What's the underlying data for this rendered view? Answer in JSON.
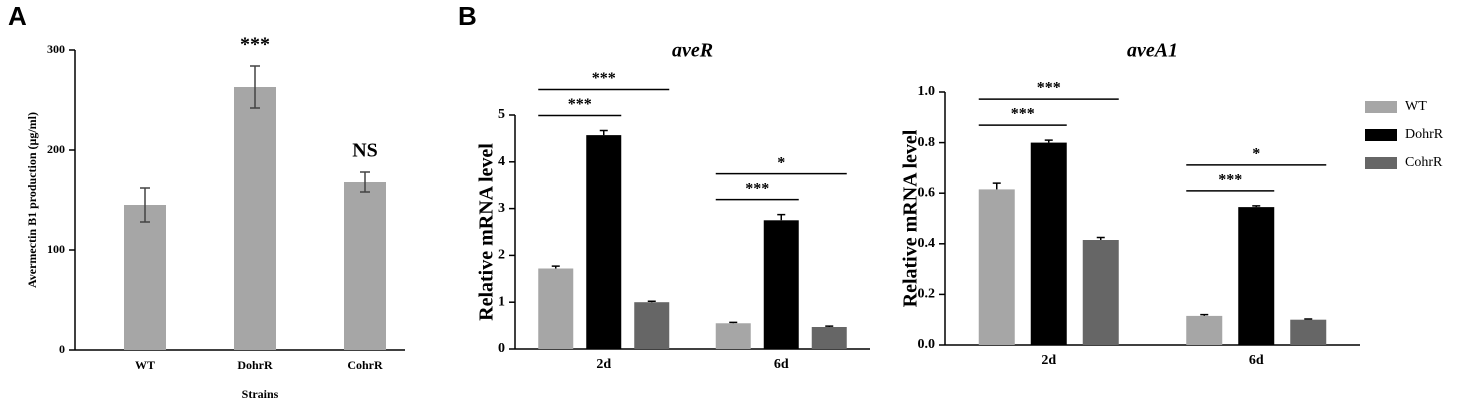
{
  "chart_data": [
    {
      "type": "bar",
      "panel": "A",
      "x_label": "Strains",
      "y_label": "Avermectin B1 production (μg/ml)",
      "categories": [
        "WT",
        "DohrR",
        "CohrR"
      ],
      "values": [
        145,
        263,
        168
      ],
      "errors": [
        17,
        21,
        10
      ],
      "error_bars": "both",
      "annotations": [
        null,
        "***",
        "NS"
      ],
      "color": "#a6a6a6",
      "ylim": [
        0,
        300
      ],
      "yticks": [
        0,
        100,
        200,
        300
      ]
    },
    {
      "type": "grouped_bar",
      "panel": "B",
      "title": "aveR",
      "y_label": "Relative mRNA level",
      "categories": [
        "2d",
        "6d"
      ],
      "series": [
        {
          "name": "WT",
          "color": "#a6a6a6",
          "values": [
            1.72,
            0.55
          ],
          "errors": [
            0.05,
            0.02
          ]
        },
        {
          "name": "DohrR",
          "color": "#000000",
          "values": [
            4.57,
            2.75
          ],
          "errors": [
            0.1,
            0.12
          ]
        },
        {
          "name": "CohrR",
          "color": "#666666",
          "values": [
            1.0,
            0.47
          ],
          "errors": [
            0.02,
            0.02
          ]
        }
      ],
      "error_bars": "up",
      "significance": [
        [
          "***",
          "***"
        ],
        [
          "***",
          "*"
        ]
      ],
      "legend": false,
      "ylim": [
        0,
        5
      ],
      "yticks": [
        0,
        1,
        2,
        3,
        4,
        5
      ]
    },
    {
      "type": "grouped_bar",
      "title": "aveA1",
      "y_label": "Relative mRNA level",
      "categories": [
        "2d",
        "6d"
      ],
      "series": [
        {
          "name": "WT",
          "color": "#a6a6a6",
          "values": [
            0.615,
            0.115
          ],
          "errors": [
            0.025,
            0.005
          ]
        },
        {
          "name": "DohrR",
          "color": "#000000",
          "values": [
            0.8,
            0.545
          ],
          "errors": [
            0.01,
            0.005
          ]
        },
        {
          "name": "CohrR",
          "color": "#666666",
          "values": [
            0.415,
            0.1
          ],
          "errors": [
            0.01,
            0.003
          ]
        }
      ],
      "error_bars": "up",
      "significance": [
        [
          "***",
          "***"
        ],
        [
          "***",
          "*"
        ]
      ],
      "legend": "right",
      "ylim": [
        0,
        1
      ],
      "yticks": [
        {
          "value": 0,
          "label": "0.0"
        },
        0.2,
        0.4,
        0.6,
        0.8,
        {
          "value": 1,
          "label": "1.0"
        }
      ]
    }
  ]
}
